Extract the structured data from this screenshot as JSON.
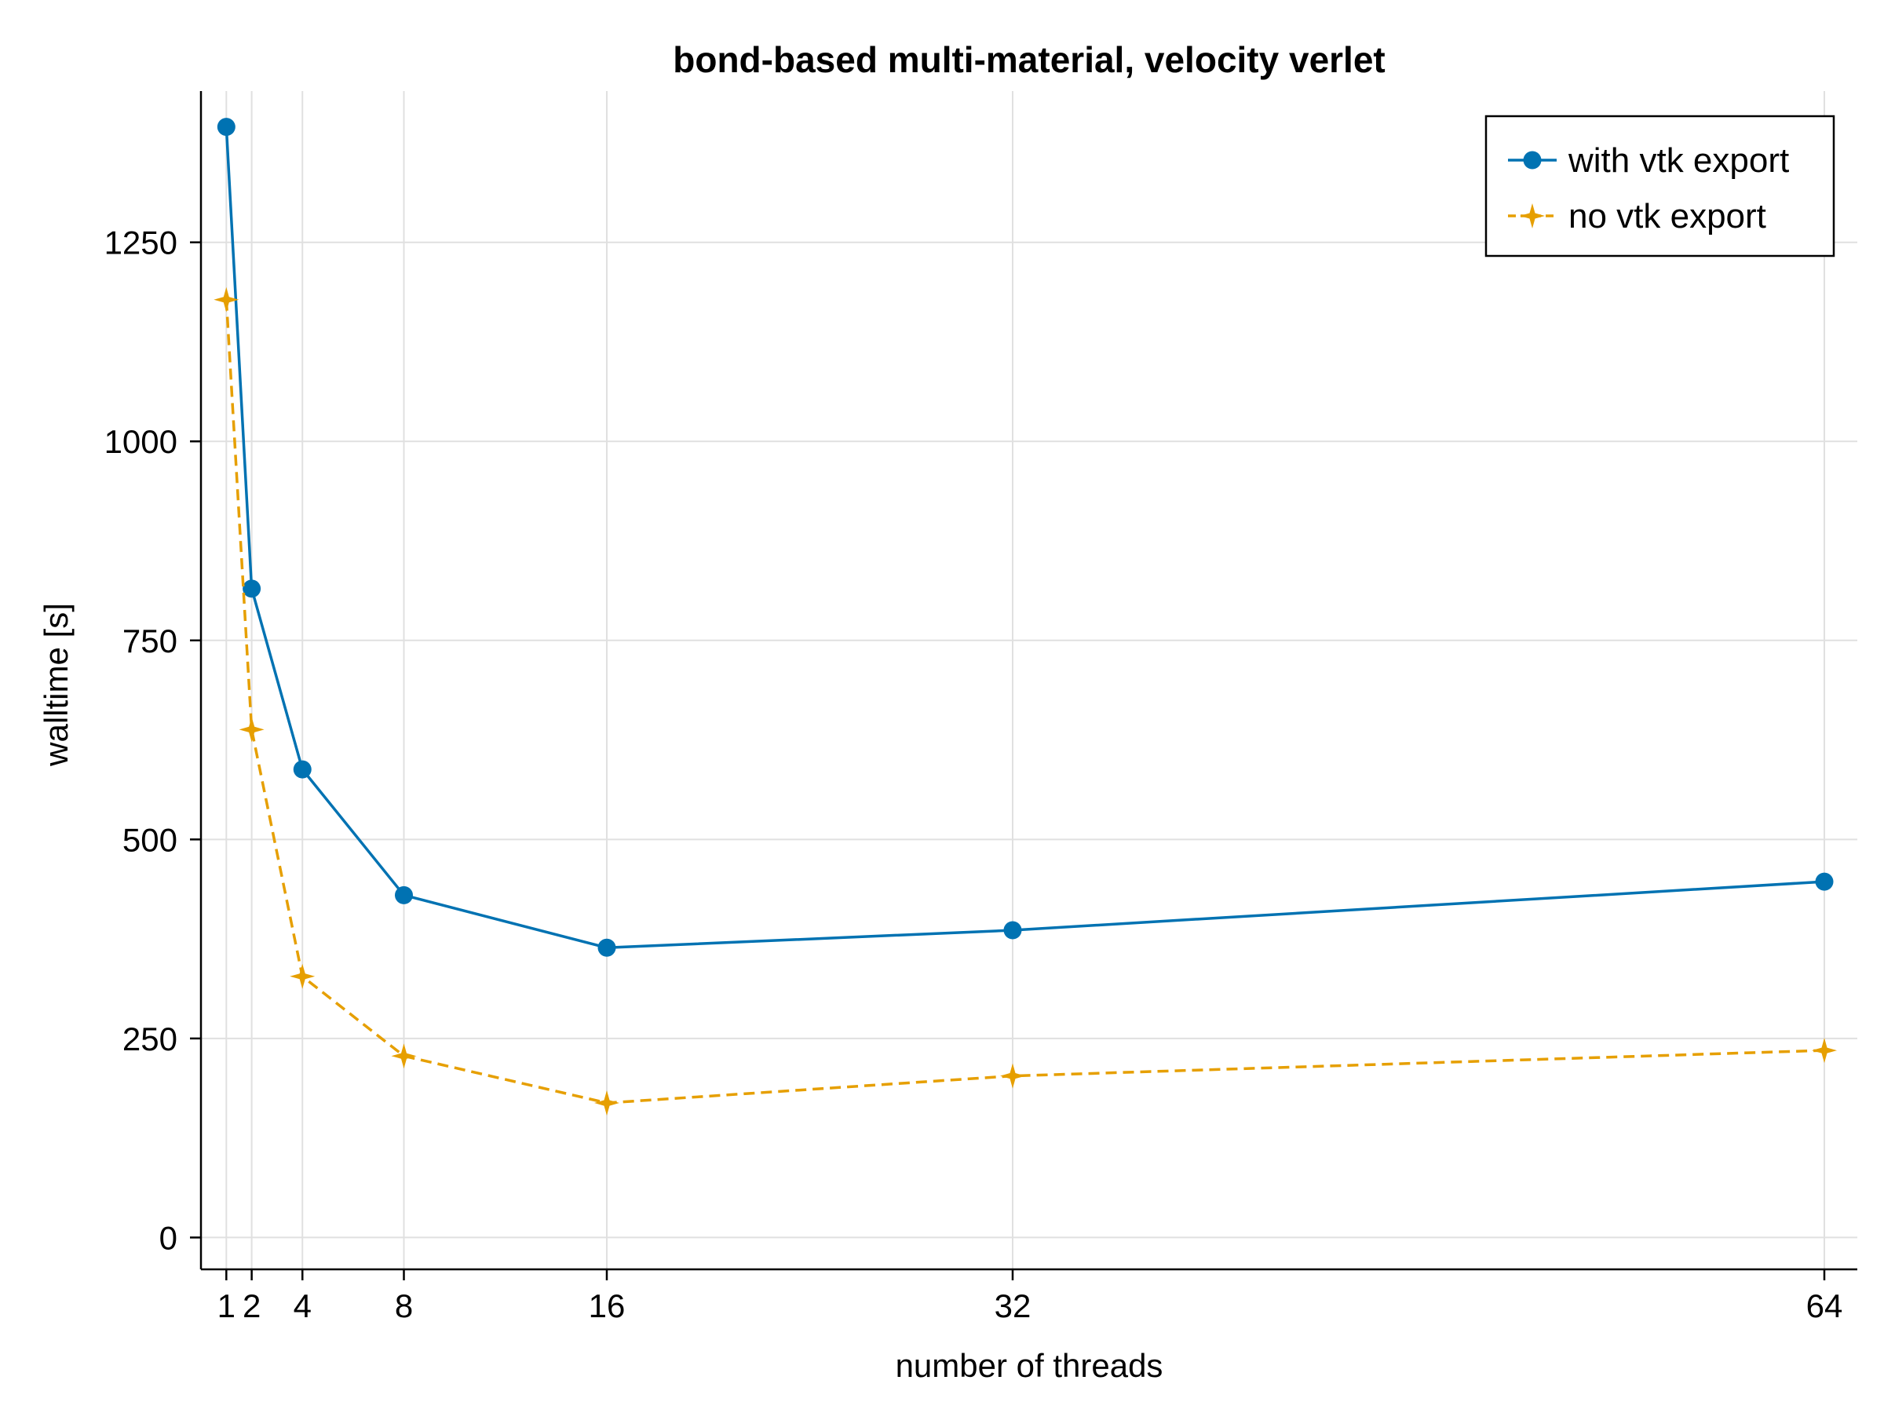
{
  "chart_data": {
    "type": "line",
    "title": "bond-based multi-material, velocity verlet",
    "xlabel": "number of threads",
    "ylabel": "walltime [s]",
    "x": [
      1,
      2,
      4,
      8,
      16,
      32,
      64
    ],
    "xticks": [
      1,
      2,
      4,
      8,
      16,
      32,
      64
    ],
    "yticks": [
      0,
      250,
      500,
      750,
      1000,
      1250
    ],
    "xlim": [
      0,
      65.3
    ],
    "ylim": [
      -40,
      1440
    ],
    "grid": true,
    "legend_position": "top-right",
    "series": [
      {
        "name": "with vtk export",
        "values": [
          1395,
          815,
          588,
          430,
          364,
          386,
          447
        ],
        "color": "#0072b2",
        "marker": "circle",
        "line": "solid"
      },
      {
        "name": "no vtk export",
        "values": [
          1178,
          638,
          328,
          228,
          169,
          203,
          235
        ],
        "color": "#e69f00",
        "marker": "star4",
        "line": "dashed"
      }
    ]
  }
}
